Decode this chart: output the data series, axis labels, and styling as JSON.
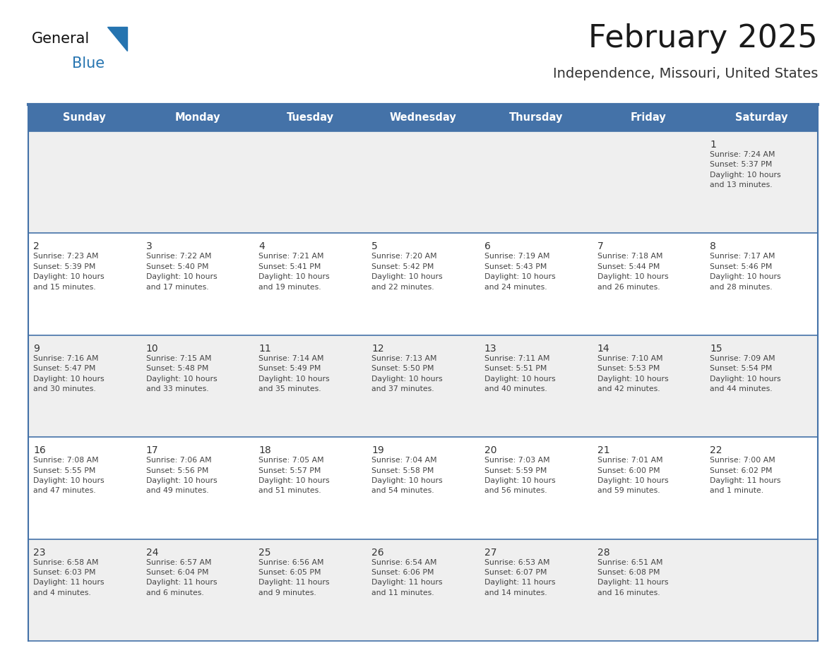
{
  "title": "February 2025",
  "subtitle": "Independence, Missouri, United States",
  "header_bg": "#4472A8",
  "header_text_color": "#FFFFFF",
  "cell_bg_gray": "#EFEFEF",
  "cell_bg_white": "#FFFFFF",
  "border_color": "#4472A8",
  "day_headers": [
    "Sunday",
    "Monday",
    "Tuesday",
    "Wednesday",
    "Thursday",
    "Friday",
    "Saturday"
  ],
  "title_color": "#1a1a1a",
  "subtitle_color": "#333333",
  "day_number_color": "#333333",
  "info_color": "#444444",
  "logo_general_color": "#111111",
  "logo_blue_color": "#2574B0",
  "weeks": [
    [
      {
        "day": "",
        "info": ""
      },
      {
        "day": "",
        "info": ""
      },
      {
        "day": "",
        "info": ""
      },
      {
        "day": "",
        "info": ""
      },
      {
        "day": "",
        "info": ""
      },
      {
        "day": "",
        "info": ""
      },
      {
        "day": "1",
        "info": "Sunrise: 7:24 AM\nSunset: 5:37 PM\nDaylight: 10 hours\nand 13 minutes."
      }
    ],
    [
      {
        "day": "2",
        "info": "Sunrise: 7:23 AM\nSunset: 5:39 PM\nDaylight: 10 hours\nand 15 minutes."
      },
      {
        "day": "3",
        "info": "Sunrise: 7:22 AM\nSunset: 5:40 PM\nDaylight: 10 hours\nand 17 minutes."
      },
      {
        "day": "4",
        "info": "Sunrise: 7:21 AM\nSunset: 5:41 PM\nDaylight: 10 hours\nand 19 minutes."
      },
      {
        "day": "5",
        "info": "Sunrise: 7:20 AM\nSunset: 5:42 PM\nDaylight: 10 hours\nand 22 minutes."
      },
      {
        "day": "6",
        "info": "Sunrise: 7:19 AM\nSunset: 5:43 PM\nDaylight: 10 hours\nand 24 minutes."
      },
      {
        "day": "7",
        "info": "Sunrise: 7:18 AM\nSunset: 5:44 PM\nDaylight: 10 hours\nand 26 minutes."
      },
      {
        "day": "8",
        "info": "Sunrise: 7:17 AM\nSunset: 5:46 PM\nDaylight: 10 hours\nand 28 minutes."
      }
    ],
    [
      {
        "day": "9",
        "info": "Sunrise: 7:16 AM\nSunset: 5:47 PM\nDaylight: 10 hours\nand 30 minutes."
      },
      {
        "day": "10",
        "info": "Sunrise: 7:15 AM\nSunset: 5:48 PM\nDaylight: 10 hours\nand 33 minutes."
      },
      {
        "day": "11",
        "info": "Sunrise: 7:14 AM\nSunset: 5:49 PM\nDaylight: 10 hours\nand 35 minutes."
      },
      {
        "day": "12",
        "info": "Sunrise: 7:13 AM\nSunset: 5:50 PM\nDaylight: 10 hours\nand 37 minutes."
      },
      {
        "day": "13",
        "info": "Sunrise: 7:11 AM\nSunset: 5:51 PM\nDaylight: 10 hours\nand 40 minutes."
      },
      {
        "day": "14",
        "info": "Sunrise: 7:10 AM\nSunset: 5:53 PM\nDaylight: 10 hours\nand 42 minutes."
      },
      {
        "day": "15",
        "info": "Sunrise: 7:09 AM\nSunset: 5:54 PM\nDaylight: 10 hours\nand 44 minutes."
      }
    ],
    [
      {
        "day": "16",
        "info": "Sunrise: 7:08 AM\nSunset: 5:55 PM\nDaylight: 10 hours\nand 47 minutes."
      },
      {
        "day": "17",
        "info": "Sunrise: 7:06 AM\nSunset: 5:56 PM\nDaylight: 10 hours\nand 49 minutes."
      },
      {
        "day": "18",
        "info": "Sunrise: 7:05 AM\nSunset: 5:57 PM\nDaylight: 10 hours\nand 51 minutes."
      },
      {
        "day": "19",
        "info": "Sunrise: 7:04 AM\nSunset: 5:58 PM\nDaylight: 10 hours\nand 54 minutes."
      },
      {
        "day": "20",
        "info": "Sunrise: 7:03 AM\nSunset: 5:59 PM\nDaylight: 10 hours\nand 56 minutes."
      },
      {
        "day": "21",
        "info": "Sunrise: 7:01 AM\nSunset: 6:00 PM\nDaylight: 10 hours\nand 59 minutes."
      },
      {
        "day": "22",
        "info": "Sunrise: 7:00 AM\nSunset: 6:02 PM\nDaylight: 11 hours\nand 1 minute."
      }
    ],
    [
      {
        "day": "23",
        "info": "Sunrise: 6:58 AM\nSunset: 6:03 PM\nDaylight: 11 hours\nand 4 minutes."
      },
      {
        "day": "24",
        "info": "Sunrise: 6:57 AM\nSunset: 6:04 PM\nDaylight: 11 hours\nand 6 minutes."
      },
      {
        "day": "25",
        "info": "Sunrise: 6:56 AM\nSunset: 6:05 PM\nDaylight: 11 hours\nand 9 minutes."
      },
      {
        "day": "26",
        "info": "Sunrise: 6:54 AM\nSunset: 6:06 PM\nDaylight: 11 hours\nand 11 minutes."
      },
      {
        "day": "27",
        "info": "Sunrise: 6:53 AM\nSunset: 6:07 PM\nDaylight: 11 hours\nand 14 minutes."
      },
      {
        "day": "28",
        "info": "Sunrise: 6:51 AM\nSunset: 6:08 PM\nDaylight: 11 hours\nand 16 minutes."
      },
      {
        "day": "",
        "info": ""
      }
    ]
  ],
  "row_bg_pattern": [
    "gray",
    "white",
    "gray",
    "white",
    "gray"
  ]
}
